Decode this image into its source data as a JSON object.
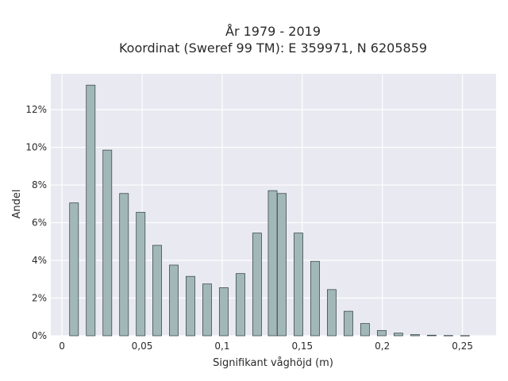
{
  "chart_data": {
    "type": "bar",
    "title_line1": "År 1979 - 2019",
    "title_line2": "Koordinat (Sweref 99 TM): E 359971, N 6205859",
    "xlabel": "Signifikant våghöjd (m)",
    "ylabel": "Andel",
    "xlim": [
      -0.007,
      0.271
    ],
    "ylim": [
      0,
      13.9
    ],
    "x_ticks": [
      {
        "value": 0,
        "label": "0"
      },
      {
        "value": 0.05,
        "label": "0,05"
      },
      {
        "value": 0.1,
        "label": "0,1"
      },
      {
        "value": 0.15,
        "label": "0,15"
      },
      {
        "value": 0.2,
        "label": "0,2"
      },
      {
        "value": 0.25,
        "label": "0,25"
      }
    ],
    "y_ticks": [
      {
        "value": 0,
        "label": "0%"
      },
      {
        "value": 2,
        "label": "2%"
      },
      {
        "value": 4,
        "label": "4%"
      },
      {
        "value": 6,
        "label": "6%"
      },
      {
        "value": 8,
        "label": "8%"
      },
      {
        "value": 10,
        "label": "10%"
      },
      {
        "value": 12,
        "label": "12%"
      }
    ],
    "bar_width": 0.0055,
    "grid": true,
    "colors": {
      "plot_background": "#e9e9f1",
      "grid": "#ffffff",
      "bar_fill": "#a2b7b8",
      "bar_stroke": "#3f4e4f"
    },
    "bars": [
      {
        "x": 0.0075,
        "value": 7.05
      },
      {
        "x": 0.0179,
        "value": 13.3
      },
      {
        "x": 0.0283,
        "value": 9.85
      },
      {
        "x": 0.0387,
        "value": 7.55
      },
      {
        "x": 0.0491,
        "value": 6.55
      },
      {
        "x": 0.0594,
        "value": 4.8
      },
      {
        "x": 0.0698,
        "value": 3.75
      },
      {
        "x": 0.0802,
        "value": 3.15
      },
      {
        "x": 0.0906,
        "value": 2.75
      },
      {
        "x": 0.101,
        "value": 2.55
      },
      {
        "x": 0.1114,
        "value": 3.3
      },
      {
        "x": 0.1218,
        "value": 5.45
      },
      {
        "x": 0.1315,
        "value": 7.7
      },
      {
        "x": 0.1372,
        "value": 7.55
      },
      {
        "x": 0.1476,
        "value": 5.45
      },
      {
        "x": 0.158,
        "value": 3.95
      },
      {
        "x": 0.1684,
        "value": 2.45
      },
      {
        "x": 0.1788,
        "value": 1.3
      },
      {
        "x": 0.1892,
        "value": 0.65
      },
      {
        "x": 0.1996,
        "value": 0.28
      },
      {
        "x": 0.21,
        "value": 0.14
      },
      {
        "x": 0.2204,
        "value": 0.06
      },
      {
        "x": 0.2308,
        "value": 0.03
      },
      {
        "x": 0.2412,
        "value": 0.015
      },
      {
        "x": 0.2516,
        "value": 0.01
      }
    ]
  }
}
